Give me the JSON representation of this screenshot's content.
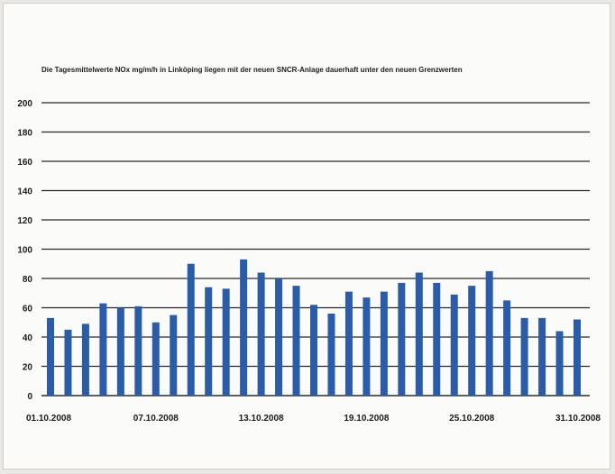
{
  "chart_data": {
    "type": "bar",
    "title": "Die Tagesmittelwerte NOx mg/m/h in Linköping liegen mit der neuen SNCR-Anlage dauerhaft unter den neuen Grenzwerten",
    "xlabel": "",
    "ylabel": "",
    "ylim": [
      0,
      200
    ],
    "yticks": [
      0,
      20,
      40,
      60,
      80,
      100,
      120,
      140,
      160,
      180,
      200
    ],
    "grid": true,
    "bar_color": "#2a5cac",
    "xtick_labels": [
      {
        "index": 0,
        "label": "01.10.2008"
      },
      {
        "index": 6,
        "label": "07.10.2008"
      },
      {
        "index": 12,
        "label": "13.10.2008"
      },
      {
        "index": 18,
        "label": "19.10.2008"
      },
      {
        "index": 24,
        "label": "25.10.2008"
      },
      {
        "index": 30,
        "label": "31.10.2008"
      }
    ],
    "categories": [
      "01.10.2008",
      "02.10.2008",
      "03.10.2008",
      "04.10.2008",
      "05.10.2008",
      "06.10.2008",
      "07.10.2008",
      "08.10.2008",
      "09.10.2008",
      "10.10.2008",
      "11.10.2008",
      "12.10.2008",
      "13.10.2008",
      "14.10.2008",
      "15.10.2008",
      "16.10.2008",
      "17.10.2008",
      "18.10.2008",
      "19.10.2008",
      "20.10.2008",
      "21.10.2008",
      "22.10.2008",
      "23.10.2008",
      "24.10.2008",
      "25.10.2008",
      "26.10.2008",
      "27.10.2008",
      "28.10.2008",
      "29.10.2008",
      "30.10.2008",
      "31.10.2008"
    ],
    "values": [
      53,
      45,
      49,
      63,
      60,
      61,
      50,
      55,
      90,
      74,
      73,
      93,
      84,
      80,
      75,
      62,
      56,
      71,
      67,
      71,
      77,
      84,
      77,
      69,
      75,
      85,
      65,
      53,
      53,
      44,
      52
    ]
  }
}
